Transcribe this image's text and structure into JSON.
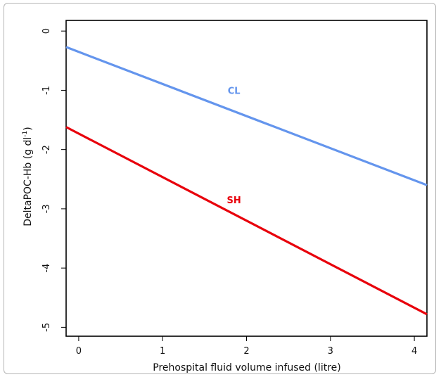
{
  "chart_data": {
    "type": "line",
    "title": "",
    "xlabel": "Prehospital fluid volume infused (litre)",
    "ylabel_parts": {
      "base": "DeltaPOC-Hb (g dl",
      "sup": "-1",
      "end": ")"
    },
    "xlim": [
      -0.15,
      4.15
    ],
    "ylim": [
      -5.15,
      0.18
    ],
    "x_ticks": [
      0,
      1,
      2,
      3,
      4
    ],
    "y_ticks": [
      0,
      -1,
      -2,
      -3,
      -4,
      -5
    ],
    "grid": false,
    "series": [
      {
        "name": "CL",
        "color": "#6495ED",
        "x": [
          -0.15,
          4.15
        ],
        "y": [
          -0.27,
          -2.6
        ],
        "label_at": [
          1.85,
          -1.0
        ]
      },
      {
        "name": "SH",
        "color": "#E8000B",
        "x": [
          -0.15,
          4.15
        ],
        "y": [
          -1.62,
          -4.78
        ],
        "label_at": [
          1.85,
          -2.85
        ]
      }
    ]
  }
}
